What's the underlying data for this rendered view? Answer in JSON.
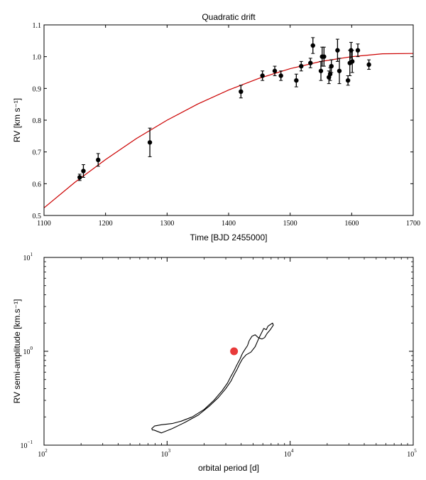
{
  "chart_data": [
    {
      "type": "scatter",
      "title": "Quadratic drift",
      "xlabel": "Time [BJD   2455000]",
      "ylabel": "RV [km s⁻¹]",
      "xlim": [
        1100,
        1700
      ],
      "ylim": [
        0.5,
        1.1
      ],
      "x_ticks": [
        "1100",
        "1200",
        "1300",
        "1400",
        "1500",
        "1600",
        "1700"
      ],
      "y_ticks": [
        "0.5",
        "0.6",
        "0.7",
        "0.8",
        "0.9",
        "1.0",
        "1.1"
      ],
      "grid": false,
      "points_color": "#000000",
      "fit_color": "#cc0000",
      "series": [
        {
          "style": "points-with-errorbars",
          "x": [
            1158,
            1164,
            1188,
            1272,
            1420,
            1455,
            1475,
            1485,
            1510,
            1518,
            1533,
            1537,
            1550,
            1552,
            1555,
            1563,
            1565,
            1567,
            1577,
            1580,
            1594,
            1597,
            1599,
            1601,
            1610,
            1628
          ],
          "y": [
            0.62,
            0.64,
            0.675,
            0.73,
            0.89,
            0.94,
            0.955,
            0.94,
            0.925,
            0.97,
            0.98,
            1.035,
            0.955,
            1.0,
            1.0,
            0.935,
            0.945,
            0.97,
            1.02,
            0.955,
            0.925,
            0.98,
            1.02,
            0.985,
            1.02,
            0.975
          ],
          "yerr": [
            0.01,
            0.02,
            0.02,
            0.045,
            0.02,
            0.015,
            0.015,
            0.015,
            0.02,
            0.015,
            0.015,
            0.025,
            0.03,
            0.03,
            0.03,
            0.02,
            0.02,
            0.02,
            0.035,
            0.04,
            0.015,
            0.04,
            0.025,
            0.035,
            0.02,
            0.015
          ]
        },
        {
          "style": "line",
          "x": [
            1100,
            1150,
            1200,
            1250,
            1300,
            1350,
            1400,
            1450,
            1500,
            1550,
            1600,
            1650,
            1700
          ],
          "y": [
            0.524,
            0.604,
            0.676,
            0.742,
            0.8,
            0.851,
            0.895,
            0.932,
            0.962,
            0.985,
            1.0,
            1.009,
            1.01
          ]
        }
      ]
    },
    {
      "type": "scatter",
      "title": "",
      "xlabel": "orbital period [d]",
      "ylabel": "RV semi-amplitude [km.s⁻¹]",
      "xscale": "log",
      "yscale": "log",
      "xlim": [
        100,
        100000
      ],
      "ylim": [
        0.1,
        10
      ],
      "x_ticks": [
        {
          "base": "10",
          "exp": "2"
        },
        {
          "base": "10",
          "exp": "3"
        },
        {
          "base": "10",
          "exp": "4"
        },
        {
          "base": "10",
          "exp": "5"
        }
      ],
      "y_ticks": [
        {
          "base": "10",
          "exp": "−1"
        },
        {
          "base": "10",
          "exp": "0"
        },
        {
          "base": "10",
          "exp": "1"
        }
      ],
      "grid": false,
      "contour_color": "#000000",
      "marker_color": "#e83a3a",
      "series": [
        {
          "style": "closed-contour",
          "x": [
            780,
            900,
            1100,
            1400,
            1800,
            2200,
            2600,
            3000,
            3300,
            3500,
            3700,
            3900,
            4100,
            4400,
            4800,
            5200,
            5600,
            6100,
            6400,
            6600,
            7200,
            7300,
            6900,
            6500,
            6200,
            5900,
            5500,
            5200,
            4900,
            4650,
            4500,
            4300,
            4100,
            3900,
            3700,
            3500,
            3300,
            3100,
            2800,
            2400,
            2000,
            1600,
            1300,
            1100,
            900,
            790,
            750,
            760
          ],
          "y": [
            0.145,
            0.135,
            0.15,
            0.175,
            0.21,
            0.26,
            0.32,
            0.4,
            0.48,
            0.56,
            0.64,
            0.74,
            0.83,
            0.92,
            0.98,
            1.12,
            1.4,
            1.75,
            1.7,
            1.85,
            2.0,
            1.9,
            1.7,
            1.55,
            1.4,
            1.35,
            1.4,
            1.5,
            1.45,
            1.3,
            1.15,
            1.05,
            0.95,
            0.82,
            0.72,
            0.62,
            0.54,
            0.46,
            0.38,
            0.3,
            0.24,
            0.2,
            0.18,
            0.17,
            0.165,
            0.16,
            0.15,
            0.145
          ]
        },
        {
          "style": "marker",
          "x": [
            3500
          ],
          "y": [
            1.0
          ]
        }
      ]
    }
  ]
}
